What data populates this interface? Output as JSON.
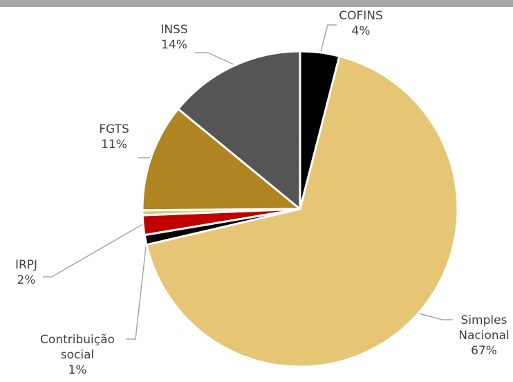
{
  "chart_data": {
    "type": "pie",
    "categories": [
      "COFINS",
      "Simples Nacional",
      "Contribuição social",
      "IRPJ",
      null,
      "FGTS",
      "INSS"
    ],
    "values": [
      4,
      67,
      1,
      2,
      0.5,
      11,
      14
    ],
    "value_labels": [
      "4%",
      "67%",
      "1%",
      "2%",
      null,
      "11%",
      "14%"
    ],
    "colors": [
      "#000000",
      "#e6c675",
      "#000000",
      "#c00000",
      "#e6c675",
      "#b08420",
      "#555555"
    ]
  }
}
